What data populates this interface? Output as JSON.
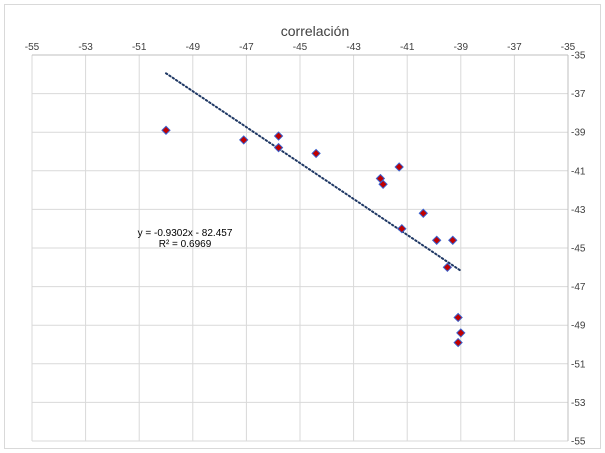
{
  "chart_data": {
    "type": "scatter",
    "title": "correlación",
    "xlabel": "",
    "ylabel": "",
    "xlim": [
      -55,
      -35
    ],
    "ylim": [
      -55,
      -35
    ],
    "x_ticks": [
      -55,
      -53,
      -51,
      -49,
      -47,
      -45,
      -43,
      -41,
      -39,
      -37,
      -35
    ],
    "y_ticks": [
      -35,
      -37,
      -39,
      -41,
      -43,
      -45,
      -47,
      -49,
      -51,
      -53,
      -55
    ],
    "grid": true,
    "legend": "none",
    "series": [
      {
        "marker": "diamond",
        "color": "#c00000",
        "edge_color": "#3a5fcd",
        "points": [
          {
            "x": -50.0,
            "y": -38.9
          },
          {
            "x": -47.1,
            "y": -39.4
          },
          {
            "x": -45.8,
            "y": -39.2
          },
          {
            "x": -45.8,
            "y": -39.8
          },
          {
            "x": -44.4,
            "y": -40.1
          },
          {
            "x": -42.0,
            "y": -41.4
          },
          {
            "x": -41.9,
            "y": -41.7
          },
          {
            "x": -41.3,
            "y": -40.8
          },
          {
            "x": -41.2,
            "y": -44.0
          },
          {
            "x": -40.4,
            "y": -43.2
          },
          {
            "x": -39.9,
            "y": -44.6
          },
          {
            "x": -39.5,
            "y": -46.0
          },
          {
            "x": -39.3,
            "y": -44.6
          },
          {
            "x": -39.1,
            "y": -48.6
          },
          {
            "x": -39.0,
            "y": -49.4
          },
          {
            "x": -39.1,
            "y": -49.9
          }
        ]
      }
    ],
    "trendline": {
      "style": "dotted",
      "color": "#1f3864",
      "x_range": [
        -50.0,
        -39.0
      ],
      "slope": -0.9302,
      "intercept": -82.457,
      "equation_label": "y = -0.9302x - 82.457",
      "r2_label": "R² = 0.6969"
    }
  }
}
